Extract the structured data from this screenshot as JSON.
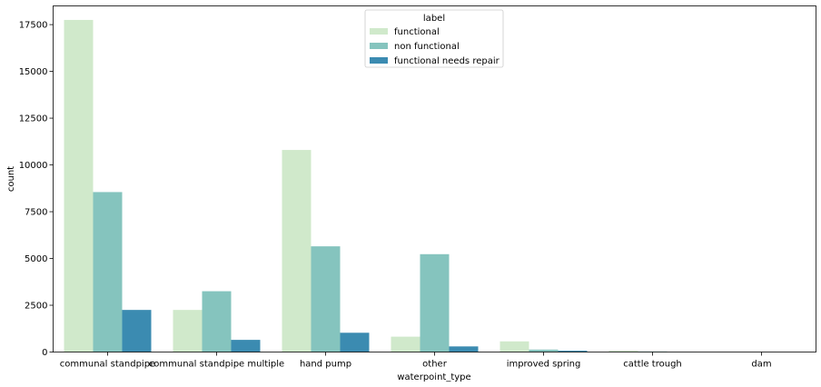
{
  "chart_data": {
    "type": "bar",
    "xlabel": "waterpoint_type",
    "ylabel": "count",
    "ylim": [
      0,
      18500
    ],
    "yticks": [
      0,
      2500,
      5000,
      7500,
      10000,
      12500,
      15000,
      17500
    ],
    "categories": [
      "communal standpipe",
      "communal standpipe multiple",
      "hand pump",
      "other",
      "improved spring",
      "cattle trough",
      "dam"
    ],
    "legend": {
      "title": "label",
      "placement": "top-center"
    },
    "series": [
      {
        "name": "functional",
        "color": "#d0e9cb",
        "values": [
          17750,
          2250,
          10800,
          820,
          570,
          85,
          5
        ]
      },
      {
        "name": "non functional",
        "color": "#85c4be",
        "values": [
          8550,
          3250,
          5650,
          5230,
          130,
          30,
          2
        ]
      },
      {
        "name": "functional needs repair",
        "color": "#3b8bb1",
        "values": [
          2250,
          650,
          1030,
          300,
          70,
          3,
          0
        ]
      }
    ]
  }
}
